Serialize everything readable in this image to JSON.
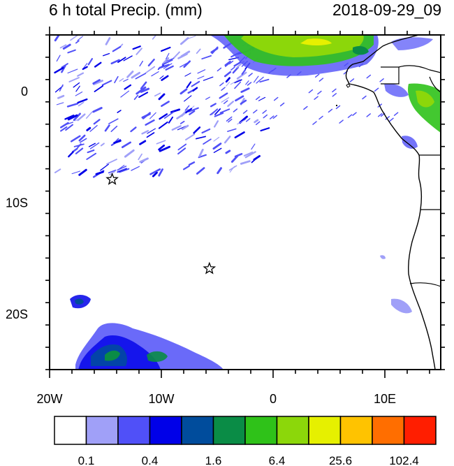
{
  "title": "6 h total Precip. (mm)",
  "datetime": "2018-09-29_09",
  "map": {
    "lon_range": [
      -20,
      15
    ],
    "lat_range": [
      -25,
      5
    ],
    "x_ticks": [
      {
        "value": -20,
        "label": "20W"
      },
      {
        "value": -10,
        "label": "10W"
      },
      {
        "value": 0,
        "label": "0"
      },
      {
        "value": 10,
        "label": "10E"
      }
    ],
    "y_ticks": [
      {
        "value": 0,
        "label": "0"
      },
      {
        "value": -10,
        "label": "10S"
      },
      {
        "value": -20,
        "label": "20S"
      }
    ],
    "markers": [
      {
        "name": "star-marker-ascension",
        "lon": -14.4,
        "lat": -7.95
      },
      {
        "name": "star-marker-st-helena",
        "lon": -5.7,
        "lat": -15.95
      }
    ]
  },
  "colorbar": {
    "colors": [
      "#ffffff",
      "#a0a0f8",
      "#5050f8",
      "#0000e8",
      "#004c9c",
      "#0a8c46",
      "#2fc219",
      "#8cd70a",
      "#e6f000",
      "#ffc300",
      "#ff6e00",
      "#ff1e00"
    ],
    "labels": [
      {
        "index": 1,
        "text": "0.1"
      },
      {
        "index": 3,
        "text": "0.4"
      },
      {
        "index": 5,
        "text": "1.6"
      },
      {
        "index": 7,
        "text": "6.4"
      },
      {
        "index": 9,
        "text": "25.6"
      },
      {
        "index": 11,
        "text": "102.4"
      }
    ]
  }
}
